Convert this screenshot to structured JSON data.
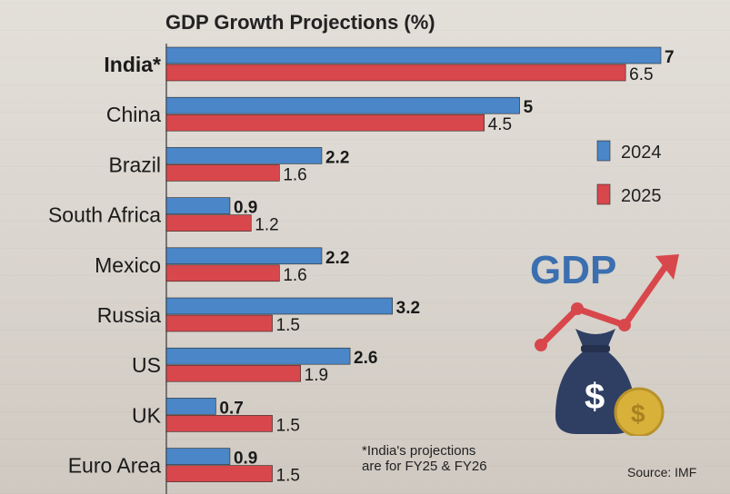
{
  "chart_data": {
    "type": "bar",
    "orientation": "horizontal",
    "title": "GDP Growth Projections (%)",
    "categories": [
      "India*",
      "China",
      "Brazil",
      "South Africa",
      "Mexico",
      "Russia",
      "US",
      "UK",
      "Euro Area"
    ],
    "series": [
      {
        "name": "2024",
        "values": [
          7,
          5,
          2.2,
          0.9,
          2.2,
          3.2,
          2.6,
          0.7,
          0.9
        ],
        "color": "#4a86c8"
      },
      {
        "name": "2025",
        "values": [
          6.5,
          4.5,
          1.6,
          1.2,
          1.6,
          1.5,
          1.9,
          1.5,
          1.5
        ],
        "color": "#d8474c"
      }
    ],
    "value_labels_2024": [
      "7",
      "5",
      "2.2",
      "0.9",
      "2.2",
      "3.2",
      "2.6",
      "0.7",
      "0.9"
    ],
    "value_labels_2025": [
      "6.5",
      "4.5",
      "1.6",
      "1.2",
      "1.6",
      "1.5",
      "1.9",
      "1.5",
      "1.5"
    ],
    "xlim": [
      0,
      7
    ],
    "grid": false,
    "legend": "right",
    "xlabel": "",
    "ylabel": ""
  },
  "footnote": {
    "line1": "*India's projections",
    "line2": "are for FY25 & FY26"
  },
  "source": "Source: IMF",
  "illustration": {
    "badge_text": "GDP",
    "bag_symbol": "$",
    "icon": "gdp-growth-money-bag-icon",
    "colors": {
      "text": "#3b6fb0",
      "arrow": "#d8474c",
      "bag": "#2f3f63",
      "coin": "#d7b13a"
    }
  }
}
